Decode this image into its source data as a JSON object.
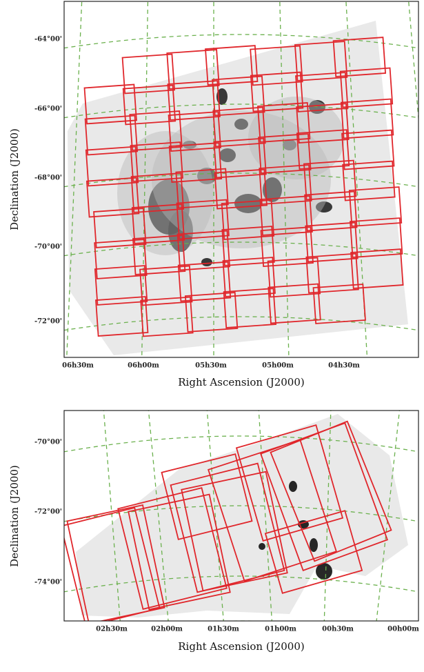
{
  "panels": [
    {
      "ylabel": "Declination (J2000)",
      "xlabel": "Right Ascension (J2000)",
      "yticks": [
        "-64°00'",
        "-66°00'",
        "-68°00'",
        "-70°00'",
        "-72°00'"
      ],
      "xticks": [
        "06h30m",
        "06h00m",
        "05h30m",
        "05h00m",
        "04h30m"
      ]
    },
    {
      "ylabel": "Declination (J2000)",
      "xlabel": "Right Ascension (J2000)",
      "yticks": [
        "-70°00'",
        "-72°00'",
        "-74°00'"
      ],
      "xticks": [
        "02h30m",
        "02h00m",
        "01h30m",
        "01h00m",
        "00h30m",
        "00h00m"
      ]
    }
  ]
}
